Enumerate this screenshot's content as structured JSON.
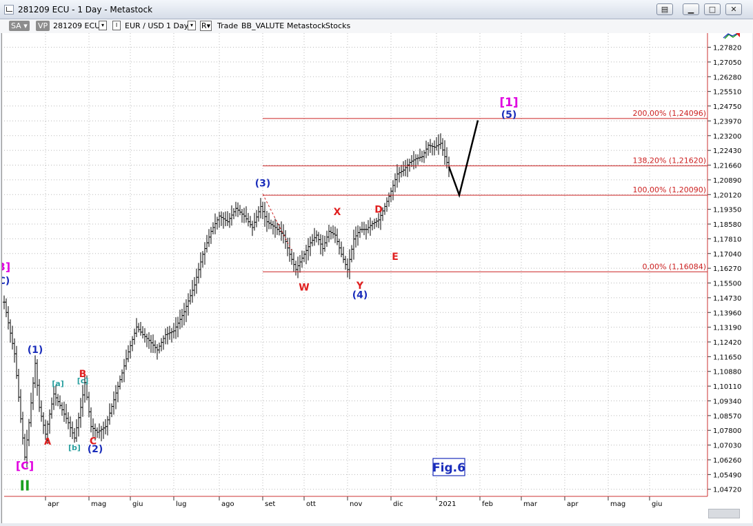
{
  "window": {
    "title": "281209 ECU - 1 Day - Metastock"
  },
  "toolbar": {
    "sa": "SA",
    "vp": "VP",
    "symbol": "281209 ECU",
    "pair": "EUR / USD",
    "period": "1 Day",
    "r": "R",
    "trade": "Trade",
    "expert": "BB_VALUTE",
    "metastock": "Metastock",
    "stocks": "Stocks"
  },
  "chart_data": {
    "type": "ohlc",
    "symbol": "EUR / USD",
    "ylim": [
      1.0435,
      1.2856
    ],
    "y_ticks": [
      "1,27820",
      "1,27050",
      "1,26280",
      "1,25510",
      "1,24750",
      "1,23970",
      "1,23200",
      "1,22430",
      "1,21660",
      "1,20890",
      "1,20120",
      "1,19350",
      "1,18580",
      "1,17810",
      "1,17040",
      "1,16270",
      "1,15500",
      "1,14730",
      "1,13960",
      "1,13190",
      "1,12420",
      "1,11650",
      "1,10880",
      "1,10110",
      "1,09340",
      "1,08570",
      "1,07800",
      "1,07030",
      "1,06260",
      "1,05490",
      "1,04720"
    ],
    "y_tick_values": [
      1.2782,
      1.2705,
      1.2628,
      1.2551,
      1.2475,
      1.2397,
      1.232,
      1.2243,
      1.2166,
      1.2089,
      1.2012,
      1.1935,
      1.1858,
      1.1781,
      1.1704,
      1.1627,
      1.155,
      1.1473,
      1.1396,
      1.1319,
      1.1242,
      1.1165,
      1.1088,
      1.1011,
      1.0934,
      1.0857,
      1.078,
      1.0703,
      1.0626,
      1.0549,
      1.0472
    ],
    "months": [
      "apr",
      "mag",
      "giu",
      "lug",
      "ago",
      "set",
      "ott",
      "nov",
      "dic",
      "2021",
      "feb",
      "mar",
      "apr",
      "mag",
      "giu"
    ],
    "month_index": [
      20,
      41,
      61,
      82,
      104,
      125,
      145,
      166,
      187,
      209,
      230,
      250,
      271,
      292,
      312
    ],
    "price_path": [
      [
        0,
        1.145
      ],
      [
        5,
        1.118
      ],
      [
        8,
        1.084
      ],
      [
        10,
        1.064
      ],
      [
        12,
        1.082
      ],
      [
        15,
        1.113
      ],
      [
        17,
        1.09
      ],
      [
        20,
        1.076
      ],
      [
        24,
        1.097
      ],
      [
        27,
        1.091
      ],
      [
        31,
        1.082
      ],
      [
        34,
        1.074
      ],
      [
        37,
        1.09
      ],
      [
        39,
        1.103
      ],
      [
        42,
        1.08
      ],
      [
        45,
        1.077
      ],
      [
        49,
        1.08
      ],
      [
        53,
        1.094
      ],
      [
        57,
        1.108
      ],
      [
        60,
        1.119
      ],
      [
        64,
        1.132
      ],
      [
        67,
        1.128
      ],
      [
        70,
        1.125
      ],
      [
        74,
        1.12
      ],
      [
        78,
        1.128
      ],
      [
        82,
        1.13
      ],
      [
        87,
        1.14
      ],
      [
        92,
        1.154
      ],
      [
        96,
        1.17
      ],
      [
        100,
        1.182
      ],
      [
        104,
        1.19
      ],
      [
        108,
        1.187
      ],
      [
        112,
        1.194
      ],
      [
        116,
        1.19
      ],
      [
        120,
        1.184
      ],
      [
        124,
        1.195
      ],
      [
        127,
        1.187
      ],
      [
        131,
        1.184
      ],
      [
        135,
        1.18
      ],
      [
        138,
        1.17
      ],
      [
        141,
        1.162
      ],
      [
        145,
        1.17
      ],
      [
        148,
        1.176
      ],
      [
        151,
        1.18
      ],
      [
        154,
        1.173
      ],
      [
        157,
        1.182
      ],
      [
        160,
        1.18
      ],
      [
        163,
        1.17
      ],
      [
        166,
        1.162
      ],
      [
        169,
        1.178
      ],
      [
        172,
        1.183
      ],
      [
        175,
        1.183
      ],
      [
        178,
        1.186
      ],
      [
        181,
        1.188
      ],
      [
        184,
        1.195
      ],
      [
        187,
        1.203
      ],
      [
        190,
        1.212
      ],
      [
        193,
        1.214
      ],
      [
        196,
        1.218
      ],
      [
        199,
        1.22
      ],
      [
        202,
        1.221
      ],
      [
        205,
        1.227
      ],
      [
        208,
        1.226
      ],
      [
        211,
        1.228
      ],
      [
        213,
        1.221
      ],
      [
        215,
        1.215
      ]
    ],
    "hlines": [
      {
        "label": "200,00% (1,24096)",
        "value": 1.24096
      },
      {
        "label": "138,20% (1,21620)",
        "value": 1.2162
      },
      {
        "label": "100,00% (1,20090)",
        "value": 1.2009
      },
      {
        "label": "0,00% (1,16084)",
        "value": 1.16084
      }
    ],
    "projection": [
      [
        215,
        1.2158
      ],
      [
        220,
        1.201
      ],
      [
        229,
        1.24
      ]
    ],
    "dashed_line": [
      [
        125,
        1.2015
      ],
      [
        139,
        1.172
      ]
    ],
    "annotations": [
      {
        "text": "3]",
        "i": 0,
        "y": 1.1615,
        "color": "#e000e0",
        "size": 16
      },
      {
        "text": "C)",
        "i": 0,
        "y": 1.1545,
        "color": "#1a2dbb",
        "size": 14
      },
      {
        "text": "(1)",
        "i": 15,
        "y": 1.1185,
        "color": "#1a2dbb",
        "size": 14
      },
      {
        "text": "[a]",
        "i": 26,
        "y": 1.1012,
        "color": "#2aa0a0",
        "size": 11
      },
      {
        "text": "B",
        "i": 38,
        "y": 1.1058,
        "color": "#e02020",
        "size": 14
      },
      {
        "text": "[c]",
        "i": 38,
        "y": 1.1025,
        "color": "#2aa0a0",
        "size": 11
      },
      {
        "text": "A",
        "i": 21,
        "y": 1.0705,
        "color": "#e02020",
        "size": 13
      },
      {
        "text": "[b]",
        "i": 34,
        "y": 1.0677,
        "color": "#2aa0a0",
        "size": 11
      },
      {
        "text": "C",
        "i": 43,
        "y": 1.0707,
        "color": "#e02020",
        "size": 14
      },
      {
        "text": "(2)",
        "i": 44,
        "y": 1.0665,
        "color": "#1a2dbb",
        "size": 14
      },
      {
        "text": "[C]",
        "i": 10,
        "y": 1.0575,
        "color": "#e000e0",
        "size": 16
      },
      {
        "text": "II",
        "i": 10,
        "y": 1.0465,
        "color": "#1aa020",
        "size": 20
      },
      {
        "text": "(3)",
        "i": 125,
        "y": 1.2055,
        "color": "#1a2dbb",
        "size": 14
      },
      {
        "text": "X",
        "i": 161,
        "y": 1.1905,
        "color": "#e02020",
        "size": 14
      },
      {
        "text": "D",
        "i": 181,
        "y": 1.1917,
        "color": "#e02020",
        "size": 14
      },
      {
        "text": "E",
        "i": 189,
        "y": 1.167,
        "color": "#e02020",
        "size": 14
      },
      {
        "text": "W",
        "i": 145,
        "y": 1.151,
        "color": "#e02020",
        "size": 14
      },
      {
        "text": "Y",
        "i": 172,
        "y": 1.152,
        "color": "#e02020",
        "size": 14
      },
      {
        "text": "(4)",
        "i": 172,
        "y": 1.147,
        "color": "#1a2dbb",
        "size": 14
      },
      {
        "text": "[1]",
        "i": 244,
        "y": 1.2475,
        "color": "#e000e0",
        "size": 17
      },
      {
        "text": "(5)",
        "i": 244,
        "y": 1.2412,
        "color": "#1a2dbb",
        "size": 14
      }
    ],
    "fig_label": "Fig.6"
  }
}
